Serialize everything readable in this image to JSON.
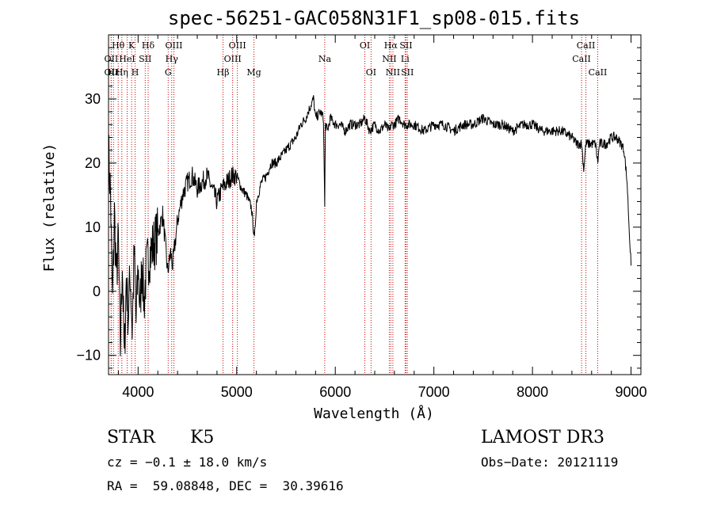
{
  "chart_data": {
    "type": "line",
    "title": "spec-56251-GAC058N31F1_sp08-015.fits",
    "xlabel": "Wavelength (Å)",
    "ylabel": "Flux (relative)",
    "xlim": [
      3700,
      9100
    ],
    "ylim": [
      -13,
      40
    ],
    "xticks": [
      4000,
      5000,
      6000,
      7000,
      8000,
      9000
    ],
    "yticks": [
      -10,
      0,
      10,
      20,
      30
    ],
    "grid": false,
    "series": [
      {
        "name": "flux",
        "x": [
          3700,
          3720,
          3740,
          3760,
          3780,
          3800,
          3820,
          3840,
          3860,
          3880,
          3900,
          3920,
          3940,
          3960,
          3980,
          4000,
          4020,
          4040,
          4060,
          4080,
          4100,
          4150,
          4200,
          4250,
          4300,
          4330,
          4350,
          4400,
          4450,
          4500,
          4550,
          4600,
          4650,
          4700,
          4750,
          4800,
          4850,
          4900,
          4950,
          5000,
          5050,
          5100,
          5150,
          5180,
          5200,
          5250,
          5300,
          5350,
          5400,
          5450,
          5500,
          5550,
          5600,
          5650,
          5700,
          5750,
          5780,
          5800,
          5850,
          5880,
          5893,
          5900,
          5920,
          5950,
          6000,
          6050,
          6100,
          6150,
          6200,
          6250,
          6300,
          6350,
          6400,
          6450,
          6500,
          6550,
          6563,
          6600,
          6650,
          6700,
          6800,
          6900,
          7000,
          7100,
          7200,
          7300,
          7400,
          7500,
          7600,
          7700,
          7800,
          7900,
          8000,
          8100,
          8200,
          8300,
          8400,
          8450,
          8500,
          8520,
          8542,
          8560,
          8600,
          8640,
          8662,
          8680,
          8700,
          8750,
          8800,
          8850,
          8900,
          8930,
          8960,
          8980,
          9000
        ],
        "values": [
          22,
          15,
          -2,
          12,
          2,
          8,
          -9,
          5,
          -11,
          2,
          -4,
          3,
          -6,
          6,
          -5,
          4,
          -3,
          5,
          -2,
          3,
          5,
          7,
          9,
          12,
          3,
          6,
          4,
          11,
          15,
          17,
          18,
          16,
          17,
          18,
          16,
          14,
          16,
          17,
          18,
          18,
          16,
          15,
          13,
          8,
          14,
          17,
          18,
          20,
          20,
          21,
          22,
          23,
          24,
          26,
          27,
          29,
          30,
          27,
          28,
          27,
          13,
          26,
          25,
          27,
          26,
          26,
          25,
          26,
          26,
          26,
          27,
          25,
          26,
          25,
          26,
          25,
          26,
          26,
          27,
          26,
          26,
          25,
          26,
          26,
          25,
          26,
          26,
          27,
          26,
          26,
          25,
          26,
          26,
          25,
          25,
          25,
          24,
          23,
          23,
          19,
          23,
          23,
          23,
          23,
          20,
          23,
          23,
          23,
          24,
          24,
          23,
          22,
          17,
          10,
          4
        ]
      }
    ],
    "spectral_lines": [
      {
        "label": "Hθ",
        "x": 3798,
        "row": 0
      },
      {
        "label": "OII",
        "x": 3727,
        "row": 1
      },
      {
        "label": "OII",
        "x": 3727,
        "row": 2
      },
      {
        "label": "Hε",
        "x": 3750,
        "row": 2
      },
      {
        "label": "Hη",
        "x": 3835,
        "row": 2
      },
      {
        "label": "K",
        "x": 3934,
        "row": 0
      },
      {
        "label": "HeI",
        "x": 3889,
        "row": 1
      },
      {
        "label": "H",
        "x": 3970,
        "row": 2
      },
      {
        "label": "SII",
        "x": 4072,
        "row": 1
      },
      {
        "label": "Hδ",
        "x": 4102,
        "row": 0
      },
      {
        "label": "OIII",
        "x": 4363,
        "row": 0
      },
      {
        "label": "Hγ",
        "x": 4341,
        "row": 1
      },
      {
        "label": "G",
        "x": 4305,
        "row": 2
      },
      {
        "label": "Hβ",
        "x": 4861,
        "row": 2
      },
      {
        "label": "OIII",
        "x": 5007,
        "row": 0
      },
      {
        "label": "OIII",
        "x": 4959,
        "row": 1
      },
      {
        "label": "Mg",
        "x": 5175,
        "row": 2
      },
      {
        "label": "Na",
        "x": 5893,
        "row": 1
      },
      {
        "label": "OI",
        "x": 6300,
        "row": 0
      },
      {
        "label": "OI",
        "x": 6363,
        "row": 2
      },
      {
        "label": "Hα",
        "x": 6563,
        "row": 0
      },
      {
        "label": "NII",
        "x": 6548,
        "row": 1
      },
      {
        "label": "NII",
        "x": 6584,
        "row": 2
      },
      {
        "label": "SII",
        "x": 6717,
        "row": 0
      },
      {
        "label": "Li",
        "x": 6708,
        "row": 1
      },
      {
        "label": "SII",
        "x": 6731,
        "row": 2
      },
      {
        "label": "CaII",
        "x": 8542,
        "row": 0
      },
      {
        "label": "CaII",
        "x": 8498,
        "row": 1
      },
      {
        "label": "CaII",
        "x": 8662,
        "row": 2
      }
    ]
  },
  "info": {
    "class_label": "STAR",
    "subclass": "K5",
    "survey": "LAMOST DR3",
    "redshift_line": "cz = −0.1 ± 18.0 km/s",
    "obs_date": "Obs−Date: 20121119",
    "coords": "RA =  59.08848, DEC =  30.39616"
  },
  "colors": {
    "line": "#000000",
    "marker_lines": "#cc0000",
    "axes": "#000000"
  }
}
